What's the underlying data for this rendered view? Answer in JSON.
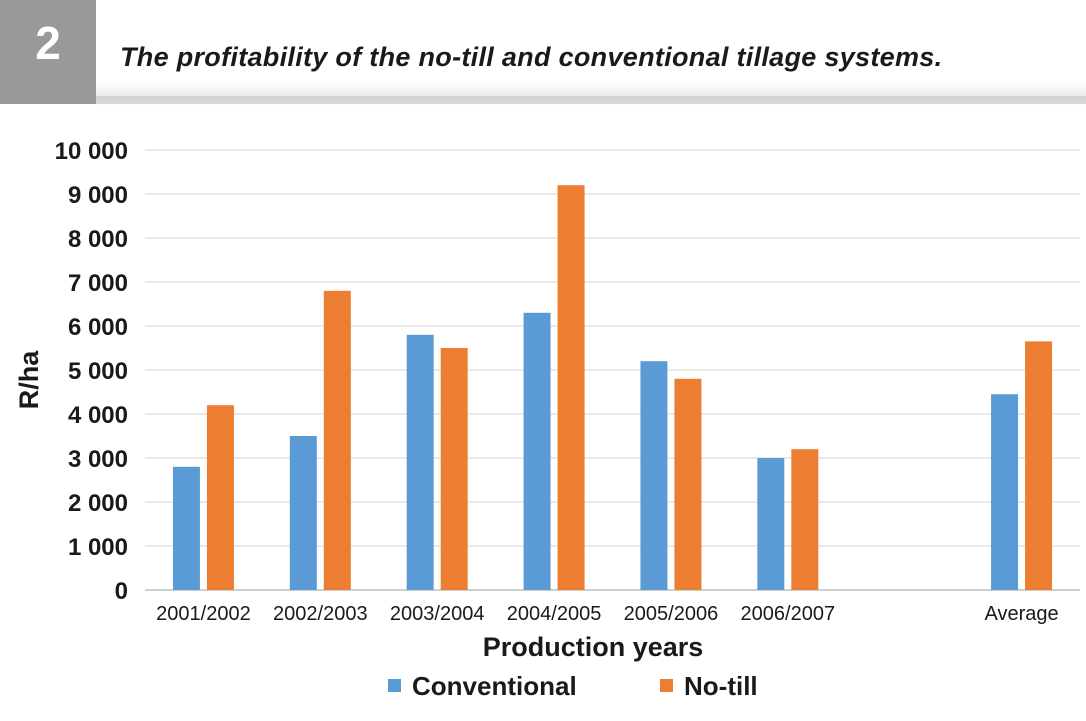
{
  "figure": {
    "number": "2",
    "title": "The profitability of the no-till and conventional tillage systems."
  },
  "chart_data": {
    "type": "bar",
    "title": "The profitability of the no-till and conventional tillage systems.",
    "xlabel": "Production years",
    "ylabel": "R/ha",
    "ylim": [
      0,
      10000
    ],
    "yticks": [
      0,
      1000,
      2000,
      3000,
      4000,
      5000,
      6000,
      7000,
      8000,
      9000,
      10000
    ],
    "ytick_labels": [
      "0",
      "1 000",
      "2 000",
      "3 000",
      "4 000",
      "5 000",
      "6 000",
      "7 000",
      "8 000",
      "9 000",
      "10 000"
    ],
    "categories": [
      "2001/2002",
      "2002/2003",
      "2003/2004",
      "2004/2005",
      "2005/2006",
      "2006/2007",
      "",
      "Average"
    ],
    "series": [
      {
        "name": "Conventional",
        "color": "#5b9bd5",
        "values": [
          2800,
          3500,
          5800,
          6300,
          5200,
          3000,
          null,
          4450
        ]
      },
      {
        "name": "No-till",
        "color": "#ed7d31",
        "values": [
          4200,
          6800,
          5500,
          9200,
          4800,
          3200,
          null,
          5650
        ]
      }
    ],
    "grid": true,
    "legend": "bottom"
  }
}
